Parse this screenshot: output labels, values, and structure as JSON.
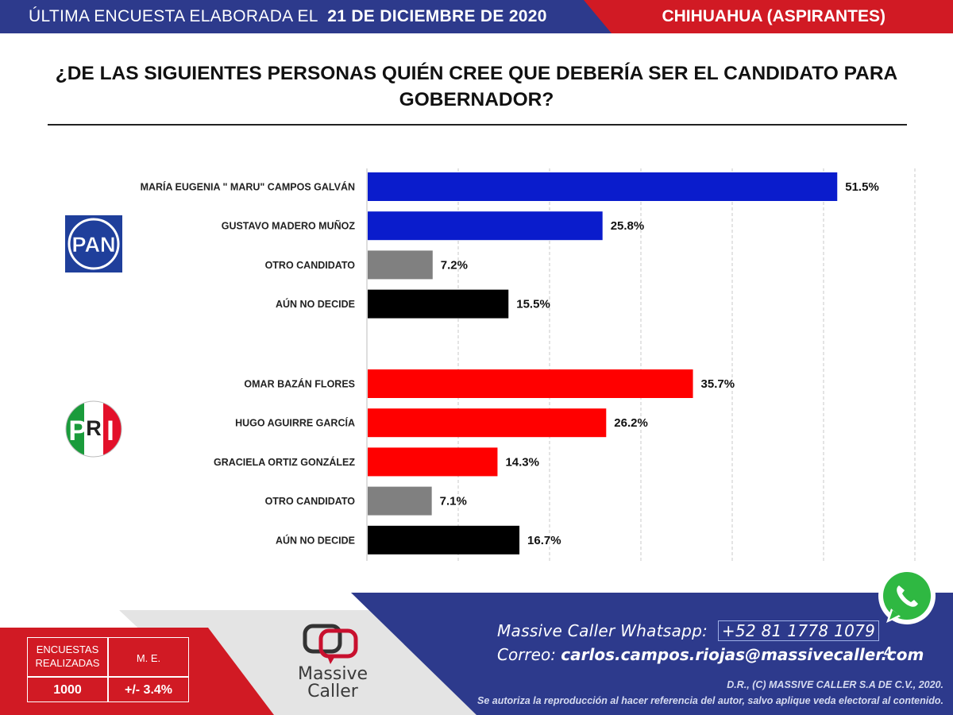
{
  "header": {
    "survey_label": "ÚLTIMA ENCUESTA ELABORADA EL",
    "survey_date": "21 DE DICIEMBRE DE 2020",
    "region": "CHIHUAHUA (ASPIRANTES)"
  },
  "question": "¿DE LAS SIGUIENTES PERSONAS QUIÉN CREE QUE DEBERÍA SER EL CANDIDATO PARA GOBERNADOR?",
  "colors": {
    "pan": "#0a1ccc",
    "pri": "#ff0000",
    "other": "#808080",
    "undecided": "#000000",
    "header_blue": "#2d3a8c",
    "header_red": "#d11a24"
  },
  "chart_data": {
    "type": "bar",
    "orientation": "horizontal",
    "xlim": [
      0,
      60
    ],
    "grid": true,
    "groups": [
      {
        "party": "PAN",
        "categories": [
          "MARÍA EUGENIA \" MARU\" CAMPOS GALVÁN",
          "GUSTAVO MADERO MUÑOZ",
          "OTRO CANDIDATO",
          "AÚN NO DECIDE"
        ],
        "values": [
          51.5,
          25.8,
          7.2,
          15.5
        ],
        "value_labels": [
          "51.5%",
          "25.8%",
          "7.2%",
          "15.5%"
        ],
        "colors": [
          "#0a1ccc",
          "#0a1ccc",
          "#808080",
          "#000000"
        ]
      },
      {
        "party": "PRI",
        "categories": [
          "OMAR BAZÁN FLORES",
          "HUGO AGUIRRE GARCÍA",
          "GRACIELA ORTIZ GONZÁLEZ",
          "OTRO CANDIDATO",
          "AÚN NO DECIDE"
        ],
        "values": [
          35.7,
          26.2,
          14.3,
          7.1,
          16.7
        ],
        "value_labels": [
          "35.7%",
          "26.2%",
          "14.3%",
          "7.1%",
          "16.7%"
        ],
        "colors": [
          "#ff0000",
          "#ff0000",
          "#ff0000",
          "#808080",
          "#000000"
        ]
      }
    ]
  },
  "logos": {
    "pan_text": "PAN",
    "pri_letters": [
      "P",
      "R",
      "I"
    ]
  },
  "footer": {
    "whatsapp_label": "Massive Caller Whatsapp:",
    "whatsapp_number": "+52 81 1778 1079",
    "email_label": "Correo:",
    "email": "carlos.campos.riojas@massivecaller.com",
    "page_number": "4",
    "copyright": "D.R., (C) MASSIVE CALLER S.A DE C.V., 2020.",
    "disclaimer": "Se autoriza la reproducción al hacer referencia del autor, salvo aplique veda electoral al contenido.",
    "brand_line1": "Massive",
    "brand_line2": "Caller"
  },
  "stats": {
    "surveys_label": "ENCUESTAS REALIZADAS",
    "surveys_value": "1000",
    "me_label": "M. E.",
    "me_value": "+/- 3.4%"
  }
}
